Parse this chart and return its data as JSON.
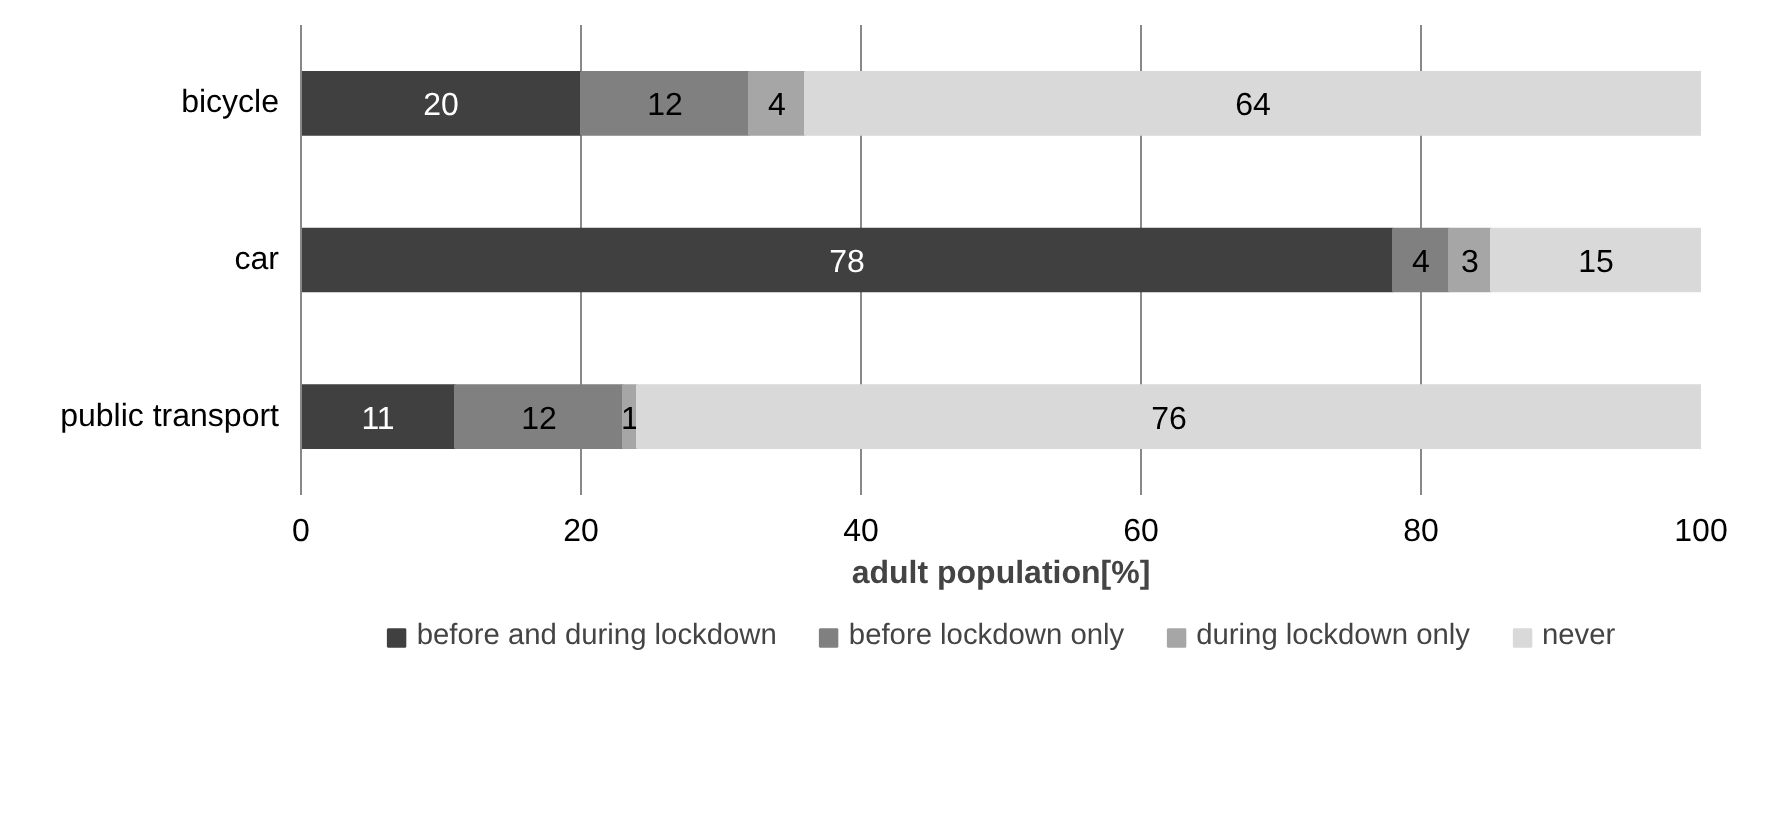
{
  "chart_data": {
    "type": "bar",
    "orientation": "horizontal",
    "stacked": true,
    "categories": [
      "bicycle",
      "car",
      "public transport"
    ],
    "series": [
      {
        "name": "before and during lockdown",
        "color": "#404040",
        "values": [
          20,
          78,
          11
        ]
      },
      {
        "name": "before lockdown only",
        "color": "#808080",
        "values": [
          12,
          4,
          12
        ]
      },
      {
        "name": "during lockdown only",
        "color": "#a6a6a6",
        "values": [
          4,
          3,
          1
        ]
      },
      {
        "name": "never",
        "color": "#d9d9d9",
        "values": [
          64,
          15,
          76
        ]
      }
    ],
    "xlabel": "adult population[%]",
    "xlim": [
      0,
      100
    ],
    "xticks": [
      0,
      20,
      40,
      60,
      80,
      100
    ],
    "grid": "x",
    "legend": "bottom",
    "data_labels": true
  }
}
